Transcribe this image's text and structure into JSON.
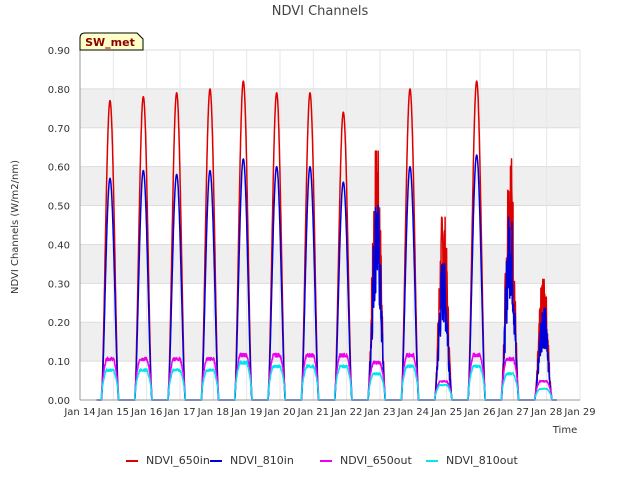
{
  "chart_data": {
    "type": "line",
    "title": "NDVI Channels",
    "xlabel": "Time",
    "ylabel": "NDVI Channels (W/m2/nm)",
    "badge": "SW_met",
    "ylim": [
      0,
      0.9
    ],
    "yticks": [
      0.0,
      0.1,
      0.2,
      0.3,
      0.4,
      0.5,
      0.6,
      0.7,
      0.8,
      0.9
    ],
    "ytick_labels": [
      "0.00",
      "0.10",
      "0.20",
      "0.30",
      "0.40",
      "0.50",
      "0.60",
      "0.70",
      "0.80",
      "0.90"
    ],
    "xlim": [
      14,
      29
    ],
    "xticks": [
      14,
      15,
      16,
      17,
      18,
      19,
      20,
      21,
      22,
      23,
      24,
      25,
      26,
      27,
      28,
      29
    ],
    "xtick_labels": [
      "Jan 14",
      "Jan 15",
      "Jan 16",
      "Jan 17",
      "Jan 18",
      "Jan 19",
      "Jan 20",
      "Jan 21",
      "Jan 22",
      "Jan 23",
      "Jan 24",
      "Jan 25",
      "Jan 26",
      "Jan 27",
      "Jan 28",
      "Jan 29"
    ],
    "grid": true,
    "legend_position": "bottom",
    "day_noon": [
      14.9,
      15.9,
      16.9,
      17.9,
      18.9,
      19.9,
      20.9,
      21.9,
      22.9,
      23.9,
      24.9,
      25.9,
      26.9,
      27.9
    ],
    "series": [
      {
        "name": "NDVI_650in",
        "color": "#dd0000",
        "peaks": [
          0.77,
          0.78,
          0.79,
          0.8,
          0.82,
          0.79,
          0.79,
          0.74,
          0.64,
          0.8,
          0.47,
          0.82,
          0.62,
          0.31
        ]
      },
      {
        "name": "NDVI_810in",
        "color": "#0000dd",
        "peaks": [
          0.57,
          0.59,
          0.58,
          0.59,
          0.62,
          0.6,
          0.6,
          0.56,
          0.5,
          0.6,
          0.35,
          0.63,
          0.47,
          0.24
        ]
      },
      {
        "name": "NDVI_650out",
        "color": "#ee00ee",
        "peaks": [
          0.11,
          0.11,
          0.11,
          0.11,
          0.12,
          0.12,
          0.12,
          0.12,
          0.1,
          0.12,
          0.05,
          0.12,
          0.11,
          0.05
        ]
      },
      {
        "name": "NDVI_810out",
        "color": "#00e5ee",
        "peaks": [
          0.08,
          0.08,
          0.08,
          0.08,
          0.1,
          0.09,
          0.09,
          0.09,
          0.07,
          0.09,
          0.04,
          0.09,
          0.07,
          0.03
        ]
      }
    ]
  }
}
